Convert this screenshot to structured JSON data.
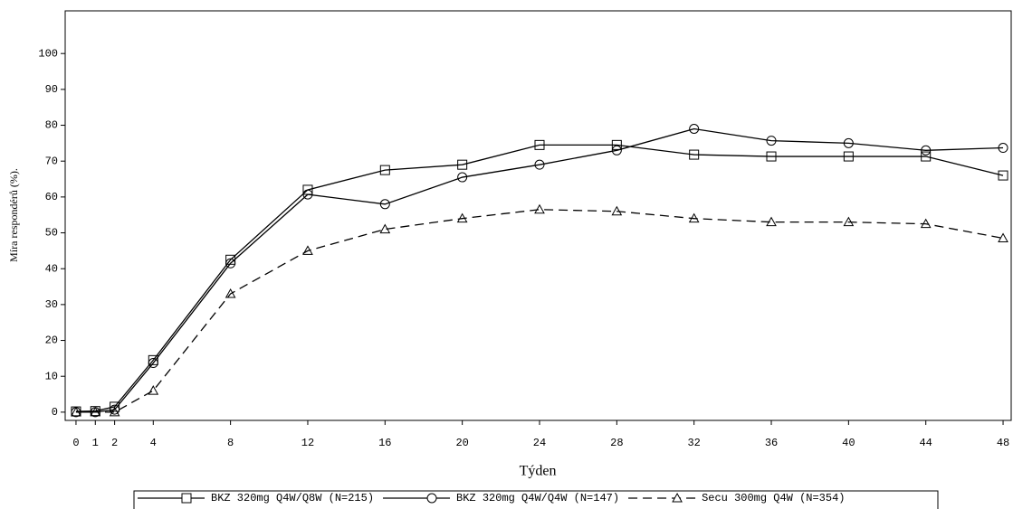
{
  "chart_data": {
    "type": "line",
    "x_label": "Týden",
    "y_label": "Míra respondérů (%).",
    "x": [
      0,
      1,
      2,
      4,
      8,
      12,
      16,
      20,
      24,
      28,
      32,
      36,
      40,
      44,
      48
    ],
    "xlim": [
      -0.56,
      48.42
    ],
    "xticks": [
      0,
      1,
      2,
      4,
      8,
      12,
      16,
      20,
      24,
      28,
      32,
      36,
      40,
      44,
      48
    ],
    "ylim": [
      -2.3,
      111.9
    ],
    "yticks": [
      0,
      10,
      20,
      30,
      40,
      50,
      60,
      70,
      80,
      90,
      100
    ],
    "series": [
      {
        "name": "BKZ 320mg Q4W/Q8W (N=215)",
        "color": "#000000",
        "marker": "square",
        "line_style": "solid",
        "values": [
          0.2,
          0.3,
          1.5,
          14.5,
          42.5,
          62,
          67.5,
          69,
          74.5,
          74.5,
          71.8,
          71.3,
          71.3,
          71.3,
          66
        ]
      },
      {
        "name": "BKZ 320mg Q4W/Q4W (N=147)",
        "color": "#000000",
        "marker": "circle",
        "line_style": "solid",
        "values": [
          0,
          0,
          0.7,
          13.7,
          41.5,
          60.7,
          58,
          65.5,
          69,
          73,
          79,
          75.7,
          75,
          73,
          73.7
        ]
      },
      {
        "name": "Secu 300mg Q4W (N=354)",
        "color": "#000000",
        "marker": "triangle",
        "line_style": "dashed",
        "values": [
          0,
          0,
          0,
          6,
          33,
          45,
          51,
          54,
          56.5,
          56,
          54,
          53,
          53,
          52.5,
          48.5
        ]
      }
    ]
  }
}
